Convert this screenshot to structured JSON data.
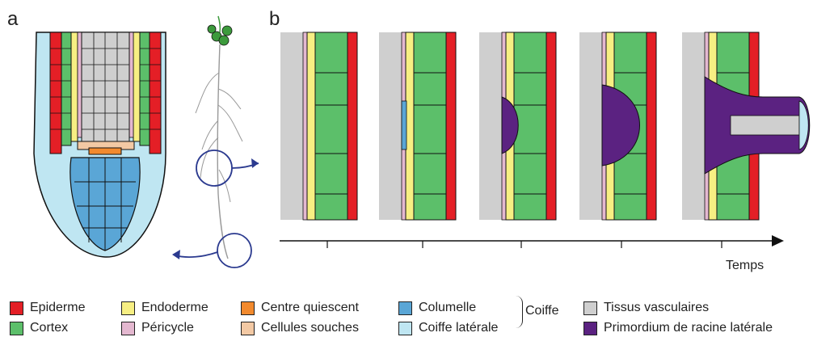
{
  "panels": {
    "a": "a",
    "b": "b"
  },
  "axis": {
    "label": "Temps"
  },
  "legend": {
    "items": [
      {
        "label": "Epiderme",
        "color": "#e41f26"
      },
      {
        "label": "Cortex",
        "color": "#5cbf6a"
      },
      {
        "label": "Endoderme",
        "color": "#f7ef83"
      },
      {
        "label": "Péricycle",
        "color": "#e4b8d0"
      },
      {
        "label": "Centre quiescent",
        "color": "#f28a2e"
      },
      {
        "label": "Cellules souches",
        "color": "#f3c9a4"
      },
      {
        "label": "Columelle",
        "color": "#5aa6d6"
      },
      {
        "label": "Coiffe latérale",
        "color": "#bfe6f2"
      },
      {
        "label": "Tissus vasculaires",
        "color": "#cfcfcf"
      },
      {
        "label": "Primordium de racine latérale",
        "color": "#5b2281"
      }
    ],
    "group_label": "Coiffe"
  },
  "colors": {
    "arrow": "#2b3a8f",
    "stroke": "#111111",
    "leaf": "#3c9a3c"
  }
}
